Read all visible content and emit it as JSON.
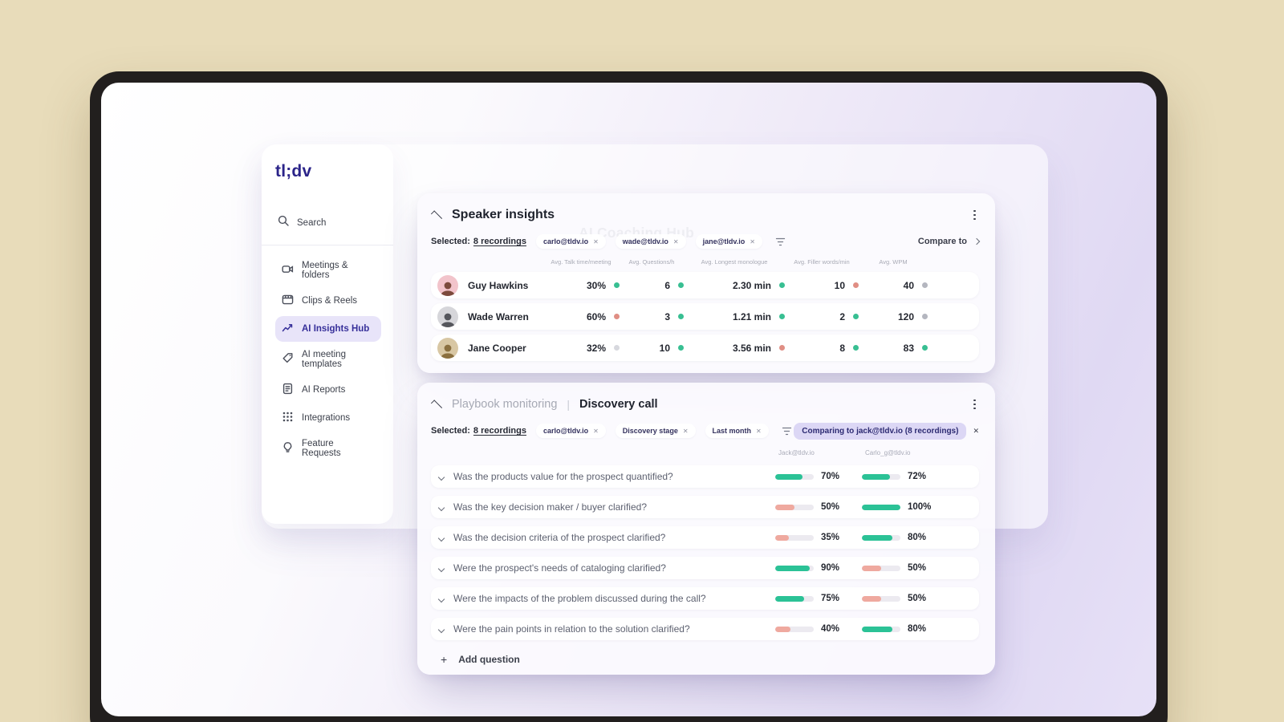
{
  "icons": {
    "close": "✕",
    "plus": "+"
  },
  "colors": {
    "dots": {
      "green": "#38bf92",
      "red": "#e08e84",
      "gray": "#b4b6bf",
      "lightgray": "#d7d8de"
    },
    "bars": {
      "green": "#2bc296",
      "salmon": "#efa99f"
    },
    "accent": "#2b2489"
  },
  "sidebar": {
    "logo": "tl;dv",
    "search_label": "Search",
    "items": [
      {
        "label": "Meetings & folders"
      },
      {
        "label": "Clips & Reels"
      },
      {
        "label": "AI Insights Hub"
      },
      {
        "label": "AI meeting templates"
      },
      {
        "label": "AI Reports"
      },
      {
        "label": "Integrations"
      },
      {
        "label": "Feature Requests"
      }
    ]
  },
  "header": {
    "title": "AI Coaching Hub"
  },
  "speaker_insights": {
    "title": "Speaker insights",
    "selected_label": "Selected:",
    "selected_count": "8 recordings",
    "chips": [
      "carlo@tldv.io",
      "wade@tldv.io",
      "jane@tldv.io"
    ],
    "compare_label": "Compare to",
    "columns": [
      "Avg. Talk time/meeting",
      "Avg. Questions/h",
      "Avg. Longest monologue",
      "Avg. Filler words/min",
      "Avg. WPM"
    ],
    "rows": [
      {
        "name": "Guy Hawkins",
        "avatar_bg": "#f2c4cb",
        "avatar_fg": "#7c4a3c",
        "metrics": [
          {
            "value": "30%",
            "dot": "green"
          },
          {
            "value": "6",
            "dot": "green"
          },
          {
            "value": "2.30 min",
            "dot": "green"
          },
          {
            "value": "10",
            "dot": "red"
          },
          {
            "value": "40",
            "dot": "gray"
          }
        ]
      },
      {
        "name": "Wade Warren",
        "avatar_bg": "#d6d6da",
        "avatar_fg": "#55565c",
        "metrics": [
          {
            "value": "60%",
            "dot": "red"
          },
          {
            "value": "3",
            "dot": "green"
          },
          {
            "value": "1.21 min",
            "dot": "green"
          },
          {
            "value": "2",
            "dot": "green"
          },
          {
            "value": "120",
            "dot": "gray"
          }
        ]
      },
      {
        "name": "Jane Cooper",
        "avatar_bg": "#d8c7a4",
        "avatar_fg": "#8a6f3f",
        "metrics": [
          {
            "value": "32%",
            "dot": "lightgray"
          },
          {
            "value": "10",
            "dot": "green"
          },
          {
            "value": "3.56 min",
            "dot": "red"
          },
          {
            "value": "8",
            "dot": "green"
          },
          {
            "value": "83",
            "dot": "green"
          }
        ]
      }
    ]
  },
  "playbook": {
    "title_muted": "Playbook monitoring",
    "title_sep": "|",
    "title": "Discovery call",
    "selected_label": "Selected:",
    "selected_count": "8 recordings",
    "chips": [
      "carlo@tldv.io",
      "Discovery stage",
      "Last month"
    ],
    "comparing_label": "Comparing to jack@tldv.io (8 recordings)",
    "columns": [
      "Jack@tldv.io",
      "Carlo_g@tldv.io"
    ],
    "questions": [
      {
        "text": "Was the products value for the prospect quantified?",
        "left": {
          "pct": 70,
          "color": "green",
          "label": "70%"
        },
        "right": {
          "pct": 72,
          "color": "green",
          "label": "72%"
        }
      },
      {
        "text": "Was the key decision maker / buyer clarified?",
        "left": {
          "pct": 50,
          "color": "salmon",
          "label": "50%"
        },
        "right": {
          "pct": 100,
          "color": "green",
          "label": "100%"
        }
      },
      {
        "text": "Was the decision criteria of the prospect clarified?",
        "left": {
          "pct": 35,
          "color": "salmon",
          "label": "35%"
        },
        "right": {
          "pct": 80,
          "color": "green",
          "label": "80%"
        }
      },
      {
        "text": "Were the prospect's needs of cataloging clarified?",
        "left": {
          "pct": 90,
          "color": "green",
          "label": "90%"
        },
        "right": {
          "pct": 50,
          "color": "salmon",
          "label": "50%"
        }
      },
      {
        "text": "Were the impacts of the problem discussed during the call?",
        "left": {
          "pct": 75,
          "color": "green",
          "label": "75%"
        },
        "right": {
          "pct": 50,
          "color": "salmon",
          "label": "50%"
        }
      },
      {
        "text": "Were the pain points in relation to the solution clarified?",
        "left": {
          "pct": 40,
          "color": "salmon",
          "label": "40%"
        },
        "right": {
          "pct": 80,
          "color": "green",
          "label": "80%"
        }
      }
    ],
    "add_label": "Add question"
  }
}
